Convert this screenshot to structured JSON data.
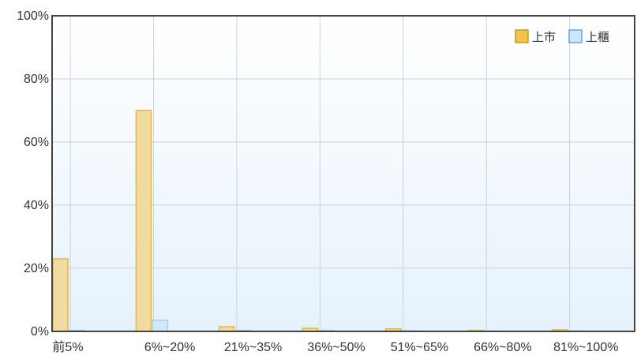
{
  "chart_data": {
    "type": "bar",
    "title": "",
    "xlabel": "",
    "ylabel": "",
    "categories": [
      "前5%",
      "6%~20%",
      "21%~35%",
      "36%~50%",
      "51%~65%",
      "66%~80%",
      "81%~100%"
    ],
    "series": [
      {
        "name": "上市",
        "values": [
          23,
          70,
          1.5,
          1,
          0.8,
          0.3,
          0.5
        ]
      },
      {
        "name": "上櫃",
        "values": [
          0.3,
          3.5,
          0.3,
          0.3,
          0.2,
          0.1,
          0.1
        ]
      }
    ],
    "ylim": [
      0,
      100
    ],
    "yticks": [
      0,
      20,
      40,
      60,
      80,
      100
    ],
    "ytick_labels": [
      "0%",
      "20%",
      "40%",
      "60%",
      "80%",
      "100%"
    ],
    "grid": true,
    "legend_position": "top-right",
    "colors": {
      "series_fill": [
        "#f0dca0",
        "#d4e7f7"
      ],
      "series_stroke": [
        "#e8b73a",
        "#a9cfee"
      ],
      "legend_fill": [
        "#f0c44a",
        "#cfe5f8"
      ],
      "legend_stroke": [
        "#c49a2a",
        "#6aa5d6"
      ],
      "plot_bg_top": "#ffffff",
      "plot_bg_bottom": "#e6f2fb",
      "grid": "#c9d3dc",
      "axis": "#444444"
    }
  }
}
